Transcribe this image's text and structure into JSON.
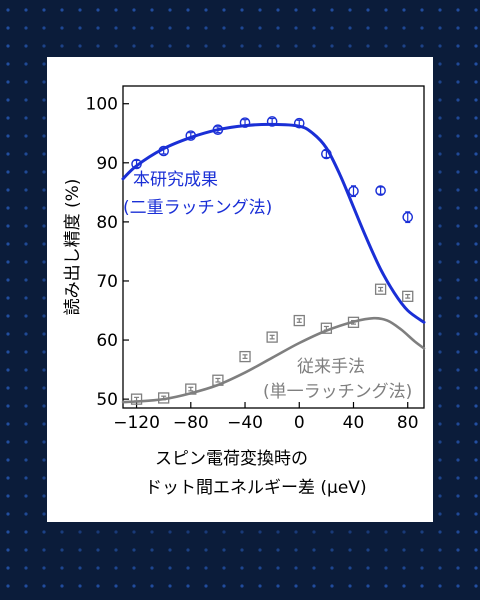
{
  "chart_data": {
    "type": "scatter",
    "ylabel": "読み出し精度 (%)",
    "xlabel_line1": "スピン電荷変換時の",
    "xlabel_line2": "ドット間エネルギー差 (μeV)",
    "xlim": [
      -130,
      92
    ],
    "ylim": [
      48.5,
      103
    ],
    "x_ticks": [
      -120,
      -80,
      -40,
      0,
      40,
      80
    ],
    "x_tick_labels": [
      "−120",
      "−80",
      "−40",
      "0",
      "40",
      "80"
    ],
    "y_ticks": [
      50,
      60,
      70,
      80,
      90,
      100
    ],
    "y_tick_labels": [
      "50",
      "60",
      "70",
      "80",
      "90",
      "100"
    ],
    "grid": false,
    "series": [
      {
        "name": "本研究成果",
        "name_line2": "(二重ラッチング法)",
        "color": "#1a2fd6",
        "marker": "circle",
        "points": [
          {
            "x": -120,
            "y": 89.8,
            "err": 0.6
          },
          {
            "x": -100,
            "y": 92.0,
            "err": 0.5
          },
          {
            "x": -80,
            "y": 94.6,
            "err": 0.5
          },
          {
            "x": -60,
            "y": 95.6,
            "err": 0.5
          },
          {
            "x": -40,
            "y": 96.8,
            "err": 0.5
          },
          {
            "x": -20,
            "y": 97.0,
            "err": 0.5
          },
          {
            "x": 0,
            "y": 96.7,
            "err": 0.5
          },
          {
            "x": 20,
            "y": 91.5,
            "err": 0.6
          },
          {
            "x": 40,
            "y": 85.2,
            "err": 0.9
          },
          {
            "x": 60,
            "y": 85.3,
            "err": 0.6
          },
          {
            "x": 80,
            "y": 80.8,
            "err": 0.9
          }
        ],
        "fit": [
          [
            -130,
            87.3
          ],
          [
            -120,
            89.5
          ],
          [
            -100,
            92.4
          ],
          [
            -80,
            94.3
          ],
          [
            -60,
            95.6
          ],
          [
            -40,
            96.3
          ],
          [
            -20,
            96.5
          ],
          [
            0,
            96.2
          ],
          [
            10,
            95.0
          ],
          [
            20,
            92.5
          ],
          [
            30,
            88.0
          ],
          [
            40,
            82.5
          ],
          [
            50,
            77.0
          ],
          [
            60,
            72.0
          ],
          [
            70,
            68.0
          ],
          [
            80,
            65.0
          ],
          [
            92,
            63.0
          ]
        ]
      },
      {
        "name": "従来手法",
        "name_line2": "(単一ラッチング法)",
        "color": "#7f7f7f",
        "marker": "square",
        "points": [
          {
            "x": -120,
            "y": 50.0,
            "err": 0.3
          },
          {
            "x": -100,
            "y": 50.2,
            "err": 0.3
          },
          {
            "x": -80,
            "y": 51.7,
            "err": 0.3
          },
          {
            "x": -60,
            "y": 53.2,
            "err": 0.3
          },
          {
            "x": -40,
            "y": 57.2,
            "err": 0.3
          },
          {
            "x": -20,
            "y": 60.5,
            "err": 0.3
          },
          {
            "x": 0,
            "y": 63.3,
            "err": 0.3
          },
          {
            "x": 20,
            "y": 62.0,
            "err": 0.3
          },
          {
            "x": 40,
            "y": 63.0,
            "err": 0.3
          },
          {
            "x": 60,
            "y": 68.6,
            "err": 0.3
          },
          {
            "x": 80,
            "y": 67.4,
            "err": 0.3
          }
        ],
        "fit": [
          [
            -130,
            49.5
          ],
          [
            -120,
            49.6
          ],
          [
            -100,
            50.0
          ],
          [
            -80,
            51.0
          ],
          [
            -60,
            52.4
          ],
          [
            -40,
            54.5
          ],
          [
            -20,
            57.0
          ],
          [
            0,
            59.5
          ],
          [
            20,
            61.6
          ],
          [
            40,
            63.1
          ],
          [
            55,
            63.7
          ],
          [
            65,
            63.3
          ],
          [
            75,
            61.8
          ],
          [
            85,
            59.8
          ],
          [
            92,
            58.6
          ]
        ]
      }
    ]
  }
}
